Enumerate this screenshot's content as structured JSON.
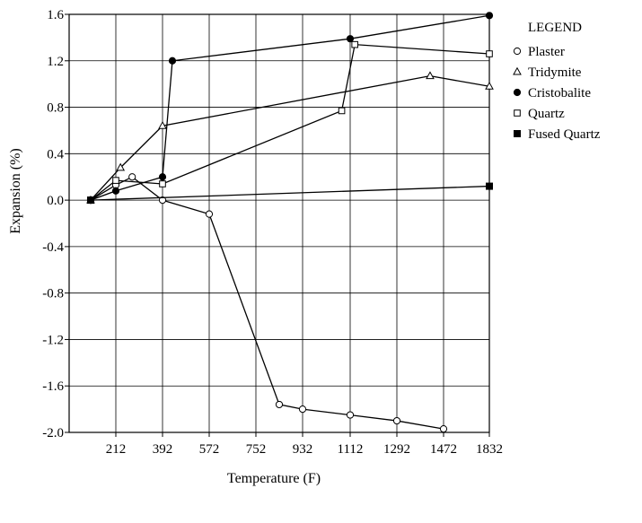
{
  "chart_data": {
    "type": "line",
    "title": "",
    "xlabel": "Temperature (F)",
    "ylabel": "Expansion (%)",
    "x_tick_values": [
      212,
      392,
      572,
      752,
      932,
      1112,
      1292,
      1472,
      1832
    ],
    "x_tick_labels": [
      "212",
      "392",
      "572",
      "752",
      "932",
      "1112",
      "1292",
      "1472",
      "1832"
    ],
    "y_tick_values": [
      1.6,
      1.2,
      0.8,
      0.4,
      0.0,
      -0.4,
      -0.8,
      -1.2,
      -1.6,
      -2.0
    ],
    "y_tick_labels": [
      "1.6",
      "1.2",
      "0.8",
      "0.4",
      "0.0",
      "-0.4",
      "-0.8",
      "-1.2",
      "-1.6",
      "-2.0"
    ],
    "ylim": [
      -2.0,
      1.6
    ],
    "grid": true,
    "legend": {
      "title": "LEGEND",
      "placement": "right",
      "entries": [
        {
          "label": "Plaster",
          "marker": "open-circle"
        },
        {
          "label": "Tridymite",
          "marker": "open-triangle"
        },
        {
          "label": "Cristobalite",
          "marker": "filled-circle"
        },
        {
          "label": "Quartz",
          "marker": "open-square"
        },
        {
          "label": "Fused Quartz",
          "marker": "filled-square"
        }
      ]
    },
    "series": [
      {
        "name": "Plaster",
        "marker": "open-circle",
        "x": [
          115,
          212,
          275,
          392,
          572,
          842,
          932,
          1112,
          1292,
          1472
        ],
        "y": [
          0.0,
          0.13,
          0.2,
          0.0,
          -0.12,
          -1.76,
          -1.8,
          -1.85,
          -1.9,
          -1.97
        ]
      },
      {
        "name": "Tridymite",
        "marker": "open-triangle",
        "x": [
          115,
          230,
          392,
          1420,
          1832
        ],
        "y": [
          0.0,
          0.28,
          0.64,
          1.07,
          0.98
        ]
      },
      {
        "name": "Cristobalite",
        "marker": "filled-circle",
        "x": [
          115,
          212,
          392,
          430,
          1112,
          1832
        ],
        "y": [
          0.0,
          0.08,
          0.2,
          1.2,
          1.39,
          1.59
        ]
      },
      {
        "name": "Quartz",
        "marker": "open-square",
        "x": [
          115,
          212,
          392,
          1080,
          1130,
          1832
        ],
        "y": [
          0.0,
          0.17,
          0.14,
          0.77,
          1.34,
          1.26
        ]
      },
      {
        "name": "Fused Quartz",
        "marker": "filled-square",
        "x": [
          115,
          1832
        ],
        "y": [
          0.0,
          0.12
        ]
      }
    ]
  }
}
